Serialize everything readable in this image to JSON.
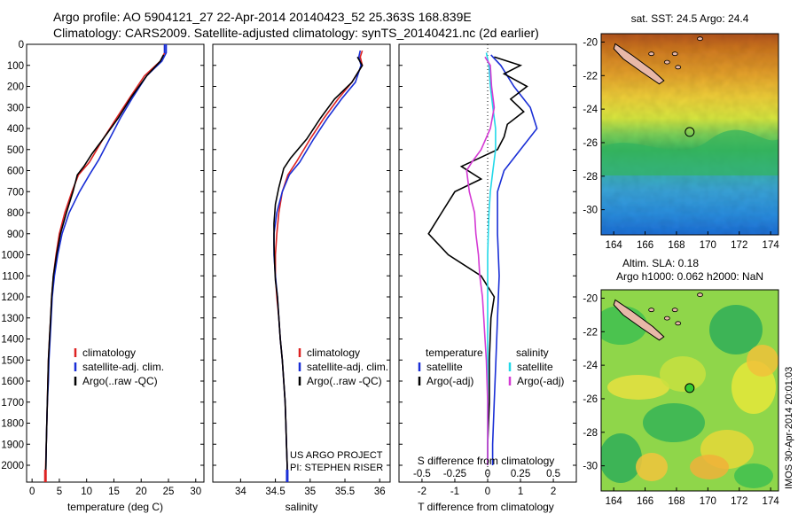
{
  "header": {
    "line1": "Argo profile: AO 5904121_27 22-Apr-2014 20140423_52 25.363S 168.839E",
    "line2": "Climatology: CARS2009. Satellite-adjusted climatology: synTS_20140421.nc (2d earlier)"
  },
  "colors": {
    "climatology": "#dd2222",
    "satellite": "#1a2fd6",
    "argo": "#000000",
    "sat_salinity": "#22d8e8",
    "argo_salinity": "#d43ad4",
    "coast_fill": "#e8b8a8"
  },
  "chart_data": [
    {
      "type": "line",
      "panel": "temperature",
      "xlabel": "temperature (deg C)",
      "xlim": [
        -1,
        31.5
      ],
      "ylim": [
        0,
        2080
      ],
      "xticks": [
        0,
        5,
        10,
        15,
        20,
        25,
        30
      ],
      "depth_ticks": [
        0,
        100,
        200,
        300,
        400,
        500,
        600,
        700,
        800,
        900,
        1000,
        1100,
        1200,
        1300,
        1400,
        1500,
        1600,
        1700,
        1800,
        1900,
        2000
      ],
      "legend": [
        "climatology",
        "satellite-adj. clim.",
        "Argo(..raw -QC)"
      ],
      "series": [
        {
          "name": "climatology",
          "color_key": "climatology",
          "points": [
            [
              24.3,
              0
            ],
            [
              24.3,
              40
            ],
            [
              23.5,
              80
            ],
            [
              20.6,
              150
            ],
            [
              18,
              250
            ],
            [
              15.5,
              350
            ],
            [
              13,
              450
            ],
            [
              10.5,
              560
            ],
            [
              8.5,
              620
            ],
            [
              7.3,
              700
            ],
            [
              6,
              800
            ],
            [
              5,
              900
            ],
            [
              4.4,
              1000
            ],
            [
              3.9,
              1100
            ],
            [
              3.6,
              1200
            ],
            [
              3.4,
              1300
            ],
            [
              3.2,
              1400
            ],
            [
              3,
              1500
            ],
            [
              2.9,
              1600
            ],
            [
              2.8,
              1700
            ],
            [
              2.7,
              1800
            ],
            [
              2.6,
              1900
            ],
            [
              2.5,
              2000
            ],
            [
              2.45,
              2080
            ]
          ]
        },
        {
          "name": "satellite-adj. clim.",
          "color_key": "satellite",
          "points": [
            [
              24.6,
              0
            ],
            [
              24.6,
              40
            ],
            [
              23.8,
              80
            ],
            [
              21,
              150
            ],
            [
              18.5,
              250
            ],
            [
              16.2,
              350
            ],
            [
              14.2,
              450
            ],
            [
              12.2,
              550
            ],
            [
              10.5,
              620
            ],
            [
              8.7,
              700
            ],
            [
              6.8,
              800
            ],
            [
              5.5,
              900
            ],
            [
              4.7,
              1000
            ],
            [
              4.1,
              1100
            ],
            [
              3.7,
              1200
            ],
            [
              3.5,
              1300
            ],
            [
              3.3,
              1400
            ],
            [
              3.1,
              1500
            ],
            [
              3,
              1600
            ],
            [
              2.8,
              1700
            ],
            [
              2.7,
              1800
            ],
            [
              2.6,
              1900
            ],
            [
              2.55,
              2000
            ],
            [
              2.5,
              2080
            ]
          ]
        },
        {
          "name": "Argo(..raw -QC)",
          "color_key": "argo",
          "points": [
            [
              24.1,
              50
            ],
            [
              23.5,
              80
            ],
            [
              21,
              150
            ],
            [
              18.2,
              250
            ],
            [
              15.8,
              350
            ],
            [
              13,
              450
            ],
            [
              11,
              520
            ],
            [
              9.5,
              580
            ],
            [
              8.3,
              620
            ],
            [
              7.5,
              700
            ],
            [
              6.3,
              800
            ],
            [
              5.2,
              900
            ],
            [
              4.5,
              1000
            ],
            [
              3.9,
              1100
            ],
            [
              3.6,
              1200
            ],
            [
              3.4,
              1300
            ],
            [
              3.2,
              1400
            ],
            [
              3,
              1500
            ],
            [
              2.9,
              1600
            ],
            [
              2.8,
              1700
            ],
            [
              2.7,
              1800
            ],
            [
              2.6,
              1900
            ],
            [
              2.55,
              2000
            ],
            [
              2.5,
              2040
            ]
          ]
        }
      ]
    },
    {
      "type": "line",
      "panel": "salinity",
      "xlabel": "salinity",
      "xlim": [
        33.6,
        36.15
      ],
      "ylim": [
        0,
        2080
      ],
      "xticks": [
        34,
        34.5,
        35,
        35.5,
        36
      ],
      "legend": [
        "climatology",
        "satellite-adj. clim.",
        "Argo(..raw -QC)"
      ],
      "project_line1": "US ARGO PROJECT",
      "project_line2": "PI: STEPHEN RISER",
      "series": [
        {
          "name": "climatology",
          "color_key": "climatology",
          "points": [
            [
              35.75,
              30
            ],
            [
              35.72,
              60
            ],
            [
              35.75,
              100
            ],
            [
              35.6,
              180
            ],
            [
              35.4,
              260
            ],
            [
              35.2,
              350
            ],
            [
              35,
              450
            ],
            [
              34.8,
              560
            ],
            [
              34.68,
              620
            ],
            [
              34.6,
              700
            ],
            [
              34.55,
              800
            ],
            [
              34.52,
              900
            ],
            [
              34.5,
              1000
            ],
            [
              34.5,
              1100
            ],
            [
              34.52,
              1200
            ],
            [
              34.55,
              1300
            ],
            [
              34.57,
              1400
            ],
            [
              34.6,
              1500
            ],
            [
              34.62,
              1600
            ],
            [
              34.64,
              1700
            ],
            [
              34.65,
              1800
            ],
            [
              34.66,
              1900
            ],
            [
              34.67,
              2000
            ],
            [
              34.67,
              2080
            ]
          ]
        },
        {
          "name": "satellite-adj. clim.",
          "color_key": "satellite",
          "points": [
            [
              35.72,
              30
            ],
            [
              35.7,
              60
            ],
            [
              35.73,
              100
            ],
            [
              35.65,
              180
            ],
            [
              35.45,
              260
            ],
            [
              35.25,
              350
            ],
            [
              35.05,
              450
            ],
            [
              34.85,
              560
            ],
            [
              34.7,
              620
            ],
            [
              34.6,
              700
            ],
            [
              34.52,
              800
            ],
            [
              34.48,
              900
            ],
            [
              34.48,
              1000
            ],
            [
              34.5,
              1100
            ],
            [
              34.53,
              1200
            ],
            [
              34.55,
              1300
            ],
            [
              34.57,
              1400
            ],
            [
              34.6,
              1500
            ],
            [
              34.62,
              1600
            ],
            [
              34.64,
              1700
            ],
            [
              34.65,
              1800
            ],
            [
              34.66,
              1900
            ],
            [
              34.67,
              2000
            ],
            [
              34.67,
              2080
            ]
          ]
        },
        {
          "name": "Argo(..raw -QC)",
          "color_key": "argo",
          "points": [
            [
              35.68,
              60
            ],
            [
              35.75,
              100
            ],
            [
              35.6,
              180
            ],
            [
              35.35,
              260
            ],
            [
              35.15,
              350
            ],
            [
              34.95,
              450
            ],
            [
              34.72,
              540
            ],
            [
              34.62,
              590
            ],
            [
              34.55,
              680
            ],
            [
              34.5,
              760
            ],
            [
              34.48,
              850
            ],
            [
              34.48,
              950
            ],
            [
              34.49,
              1050
            ],
            [
              34.5,
              1120
            ],
            [
              34.53,
              1200
            ],
            [
              34.55,
              1300
            ],
            [
              34.57,
              1400
            ],
            [
              34.6,
              1500
            ],
            [
              34.62,
              1600
            ],
            [
              34.64,
              1700
            ],
            [
              34.65,
              1800
            ],
            [
              34.66,
              1900
            ],
            [
              34.67,
              2000
            ],
            [
              34.67,
              2040
            ]
          ]
        }
      ]
    },
    {
      "type": "line",
      "panel": "difference",
      "xlabel": "T difference from climatology",
      "xlabel_top": "S difference from climatology",
      "xlim": [
        -2.7,
        2.7
      ],
      "ylim": [
        0,
        2080
      ],
      "xticks_T": [
        -2,
        -1,
        0,
        1,
        2
      ],
      "xticks_S": [
        -0.5,
        -0.25,
        0,
        0.25,
        0.5
      ],
      "s_scale": 4,
      "legend_temperature_title": "temperature",
      "legend_salinity_title": "salinity",
      "legend": [
        "satellite",
        "Argo(-adj)",
        "satellite",
        "Argo(-adj)"
      ],
      "series": [
        {
          "name": "satellite",
          "group": "temperature",
          "color_key": "satellite",
          "points": [
            [
              0.1,
              50
            ],
            [
              0.4,
              100
            ],
            [
              0.8,
              200
            ],
            [
              1.3,
              300
            ],
            [
              1.5,
              400
            ],
            [
              1,
              500
            ],
            [
              0.5,
              600
            ],
            [
              0.3,
              700
            ],
            [
              0.3,
              900
            ],
            [
              0.35,
              1100
            ],
            [
              0.3,
              1300
            ],
            [
              0.25,
              1500
            ],
            [
              0.2,
              1700
            ],
            [
              0.15,
              1900
            ],
            [
              0.15,
              2000
            ]
          ]
        },
        {
          "name": "Argo(-adj)",
          "group": "temperature",
          "color_key": "argo",
          "points": [
            [
              0.2,
              60
            ],
            [
              1,
              100
            ],
            [
              0.5,
              140
            ],
            [
              1.2,
              200
            ],
            [
              0.7,
              260
            ],
            [
              1.1,
              320
            ],
            [
              0.6,
              380
            ],
            [
              0.5,
              440
            ],
            [
              0.3,
              500
            ],
            [
              -0.8,
              580
            ],
            [
              -0.2,
              640
            ],
            [
              -1,
              700
            ],
            [
              -1.4,
              800
            ],
            [
              -1.8,
              900
            ],
            [
              -1.2,
              1000
            ],
            [
              -0.2,
              1100
            ],
            [
              0.2,
              1200
            ],
            [
              0.1,
              1300
            ],
            [
              0.05,
              1500
            ],
            [
              0.05,
              1700
            ],
            [
              0,
              1900
            ],
            [
              0,
              2000
            ]
          ]
        },
        {
          "name": "satellite",
          "group": "salinity",
          "color_key": "sat_salinity",
          "points": [
            [
              -0.01,
              40
            ],
            [
              0.01,
              100
            ],
            [
              0.02,
              200
            ],
            [
              0.04,
              300
            ],
            [
              0.06,
              400
            ],
            [
              0.06,
              500
            ],
            [
              0.04,
              600
            ],
            [
              0.02,
              700
            ],
            [
              0.01,
              800
            ],
            [
              0.005,
              900
            ],
            [
              0,
              1000
            ],
            [
              0,
              1200
            ],
            [
              0,
              1400
            ],
            [
              0,
              1600
            ],
            [
              0,
              1800
            ],
            [
              0,
              2000
            ]
          ]
        },
        {
          "name": "Argo(-adj)",
          "group": "salinity",
          "color_key": "argo_salinity",
          "points": [
            [
              -0.02,
              60
            ],
            [
              0.02,
              100
            ],
            [
              0.03,
              200
            ],
            [
              0.05,
              300
            ],
            [
              0.02,
              400
            ],
            [
              -0.05,
              500
            ],
            [
              -0.12,
              560
            ],
            [
              -0.16,
              600
            ],
            [
              -0.14,
              700
            ],
            [
              -0.1,
              800
            ],
            [
              -0.09,
              900
            ],
            [
              -0.07,
              1000
            ],
            [
              -0.06,
              1100
            ],
            [
              -0.04,
              1200
            ],
            [
              -0.03,
              1300
            ],
            [
              -0.02,
              1400
            ],
            [
              -0.01,
              1500
            ],
            [
              0,
              1700
            ],
            [
              0,
              1900
            ],
            [
              0,
              2000
            ]
          ]
        }
      ]
    },
    {
      "type": "heatmap",
      "panel": "sst_map",
      "title": "sat. SST: 24.5 Argo: 24.4",
      "xlim": [
        163.2,
        174.5
      ],
      "ylim": [
        -31.5,
        -19.5
      ],
      "xticks": [
        164,
        166,
        168,
        170,
        172,
        174
      ],
      "yticks": [
        -20,
        -22,
        -24,
        -26,
        -28,
        -30
      ],
      "argo_position": [
        168.839,
        -25.363
      ]
    },
    {
      "type": "heatmap",
      "panel": "sla_map",
      "title_line1": "Altim. SLA: 0.18",
      "title_line2": "Argo h1000: 0.062 h2000: NaN",
      "xlim": [
        163.2,
        174.5
      ],
      "ylim": [
        -31.5,
        -19.5
      ],
      "xticks": [
        164,
        166,
        168,
        170,
        172,
        174
      ],
      "yticks": [
        -20,
        -22,
        -24,
        -26,
        -28,
        -30
      ],
      "argo_position": [
        168.839,
        -25.363
      ],
      "side_label": "IMOS 30-Apr-2014 20:01:03"
    }
  ]
}
